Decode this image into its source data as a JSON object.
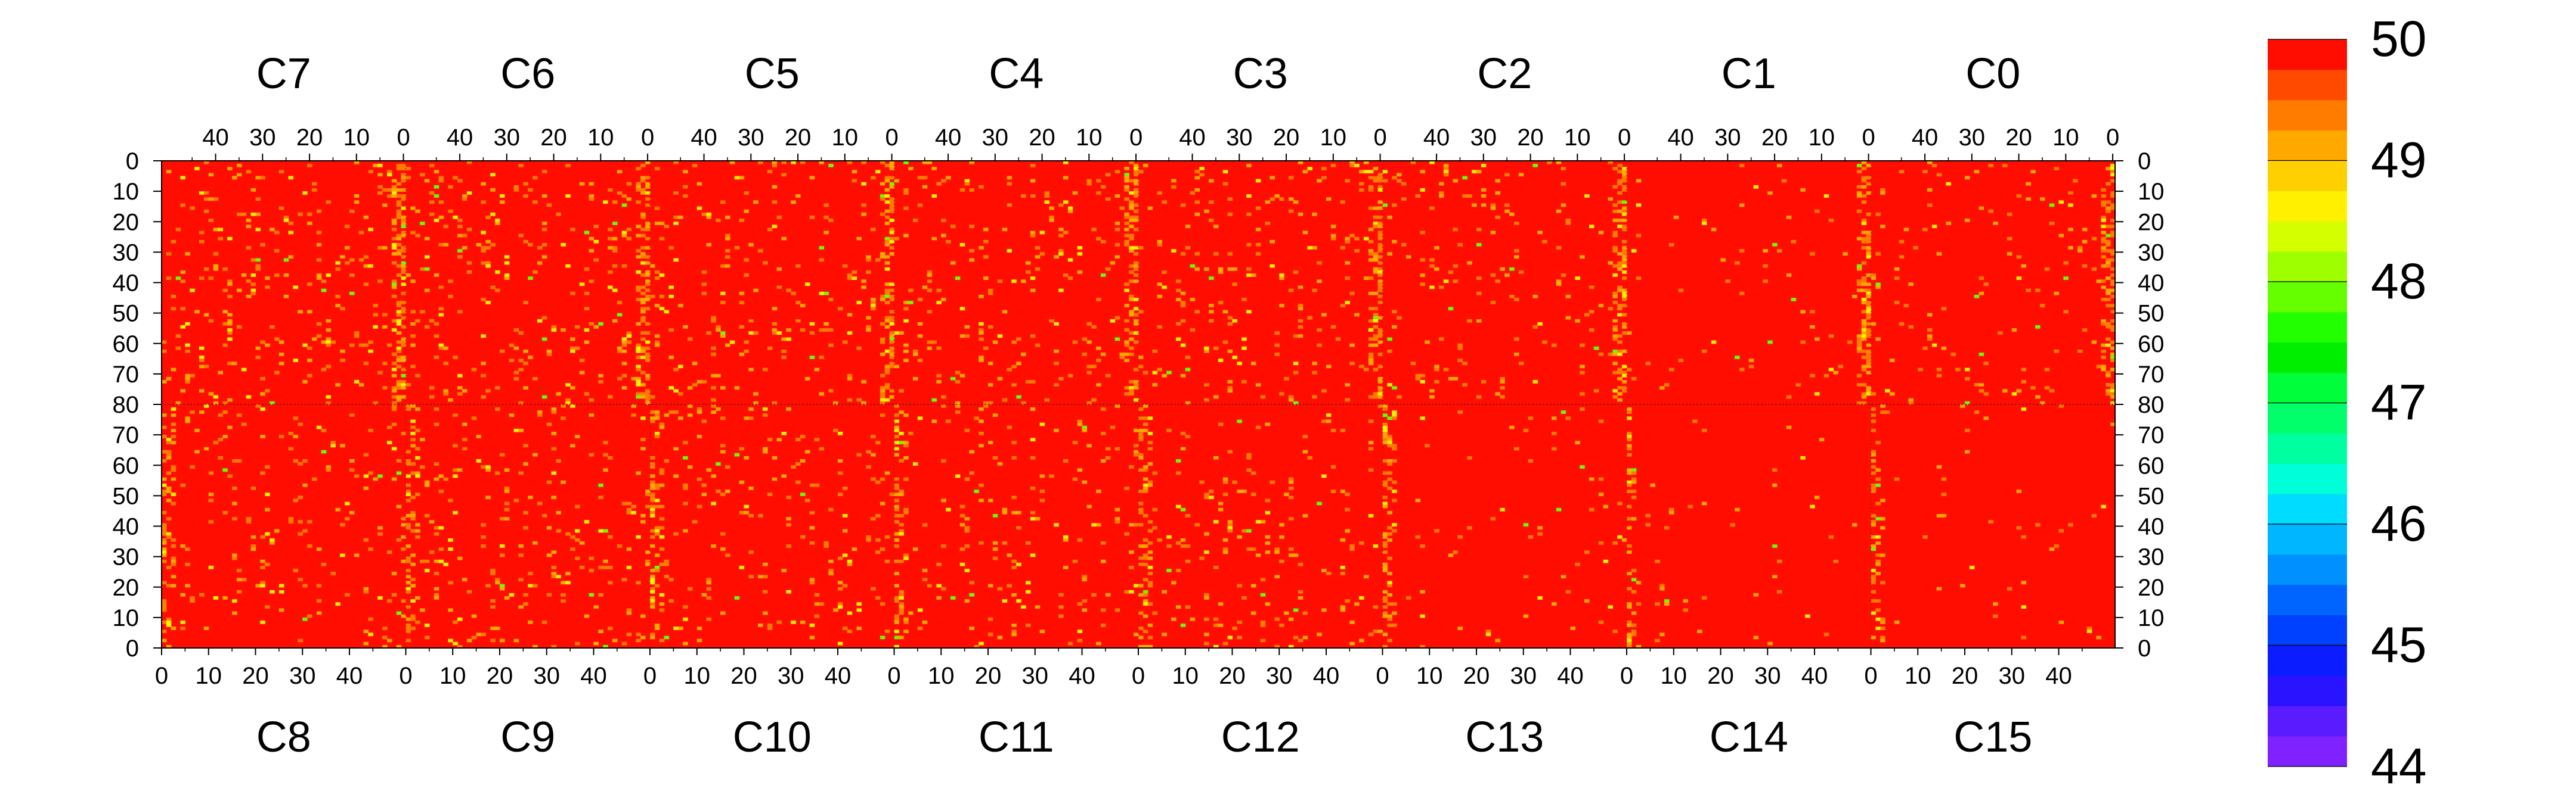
{
  "chart_data": {
    "type": "heatmap",
    "top_chip_labels": [
      "C7",
      "C6",
      "C5",
      "C4",
      "C3",
      "C2",
      "C1",
      "C0"
    ],
    "bottom_chip_labels": [
      "C8",
      "C9",
      "C10",
      "C11",
      "C12",
      "C13",
      "C14",
      "C15"
    ],
    "columns_per_chip": 52,
    "rows_per_half": 80,
    "top_x_ticks": [
      40,
      30,
      20,
      10,
      0
    ],
    "bottom_x_ticks": [
      0,
      10,
      20,
      30,
      40
    ],
    "top_y_ticks": [
      0,
      10,
      20,
      30,
      40,
      50,
      60,
      70,
      80
    ],
    "bottom_y_ticks": [
      80,
      70,
      60,
      50,
      40,
      30,
      20,
      10,
      0
    ],
    "color_scale": {
      "min": 44,
      "max": 50,
      "tick_values": [
        50,
        49,
        48,
        47,
        46,
        45,
        44
      ],
      "colors": [
        "#7f22ff",
        "#5a1bff",
        "#2a14ff",
        "#0b1cff",
        "#0040ff",
        "#0064ff",
        "#0090ff",
        "#00b6ff",
        "#00dcff",
        "#00ffd8",
        "#00ffa0",
        "#00ff6a",
        "#00ff3a",
        "#00ee00",
        "#22ff00",
        "#66ff00",
        "#9dff00",
        "#d4ff00",
        "#fff000",
        "#ffd000",
        "#ffa800",
        "#ff7c00",
        "#ff4a00",
        "#ff0e00"
      ]
    },
    "dominant_value": 50,
    "noise_level_by_chip": {
      "top": [
        0.22,
        0.2,
        0.17,
        0.19,
        0.16,
        0.14,
        0.06,
        0.09
      ],
      "bottom": [
        0.16,
        0.18,
        0.17,
        0.14,
        0.15,
        0.06,
        0.03,
        0.05
      ]
    }
  }
}
